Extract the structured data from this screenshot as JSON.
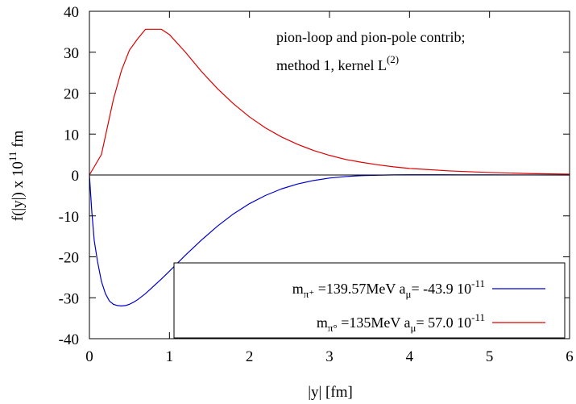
{
  "chart_data": {
    "type": "line",
    "title": "",
    "annotation": {
      "line1": "pion-loop and pion-pole contrib;",
      "line2": "method 1, kernel L",
      "line2_sup": "(2)"
    },
    "xlabel": "|y| [fm]",
    "ylabel": {
      "main": "f(|y|) x 10",
      "sup": "11",
      "unit": " fm"
    },
    "xlim": [
      0,
      6
    ],
    "ylim": [
      -40,
      40
    ],
    "x_ticks": [
      0,
      1,
      2,
      3,
      4,
      5,
      6
    ],
    "y_ticks": [
      -40,
      -30,
      -20,
      -10,
      0,
      10,
      20,
      30,
      40
    ],
    "grid": false,
    "legend_position": "bottom-right",
    "zero_line": true,
    "series": [
      {
        "legend": {
          "m": "m",
          "sub": "π⁺",
          "mass": " =139.57MeV  a",
          "a_sub": "μ",
          "value": "= -43.9 10",
          "exp": "-11"
        },
        "color": "#0000cc",
        "x": [
          0,
          0.03,
          0.06,
          0.1,
          0.15,
          0.2,
          0.25,
          0.3,
          0.35,
          0.4,
          0.45,
          0.5,
          0.55,
          0.6,
          0.7,
          0.8,
          0.9,
          1.0,
          1.2,
          1.4,
          1.6,
          1.8,
          2.0,
          2.2,
          2.4,
          2.6,
          2.8,
          3.0,
          3.2,
          3.4,
          3.6,
          3.8,
          4.0,
          4.2,
          4.4,
          4.6,
          5.0,
          5.5,
          6.0
        ],
        "y": [
          0,
          -9,
          -16,
          -21,
          -26,
          -29,
          -30.8,
          -31.6,
          -31.9,
          -32,
          -31.9,
          -31.6,
          -31.1,
          -30.5,
          -29,
          -27.2,
          -25.4,
          -23.5,
          -19.6,
          -15.9,
          -12.5,
          -9.5,
          -7.0,
          -5.0,
          -3.4,
          -2.2,
          -1.35,
          -0.75,
          -0.38,
          -0.15,
          -0.05,
          0.02,
          0.05,
          0.06,
          0.05,
          0.04,
          0.02,
          0.01,
          0
        ]
      },
      {
        "legend": {
          "m": "m",
          "sub": "π°",
          "mass": " =135MeV  a",
          "a_sub": "μ",
          "value": "= 57.0 10",
          "exp": "-11"
        },
        "color": "#dd0000",
        "x": [
          0,
          0.15,
          0.3,
          0.4,
          0.5,
          0.6,
          0.7,
          0.8,
          0.9,
          1.0,
          1.2,
          1.4,
          1.6,
          1.8,
          2.0,
          2.2,
          2.4,
          2.6,
          2.8,
          3.0,
          3.2,
          3.4,
          3.6,
          3.8,
          4.0,
          4.5,
          5.0,
          5.5,
          6.0
        ],
        "y": [
          0,
          5,
          18.5,
          25.5,
          30.5,
          33.2,
          35.6,
          35.6,
          35.6,
          34.3,
          30.0,
          25.3,
          21.1,
          17.4,
          14.2,
          11.5,
          9.3,
          7.5,
          6.0,
          4.8,
          3.8,
          3.1,
          2.5,
          2.0,
          1.6,
          1.0,
          0.6,
          0.35,
          0.2
        ]
      }
    ]
  }
}
